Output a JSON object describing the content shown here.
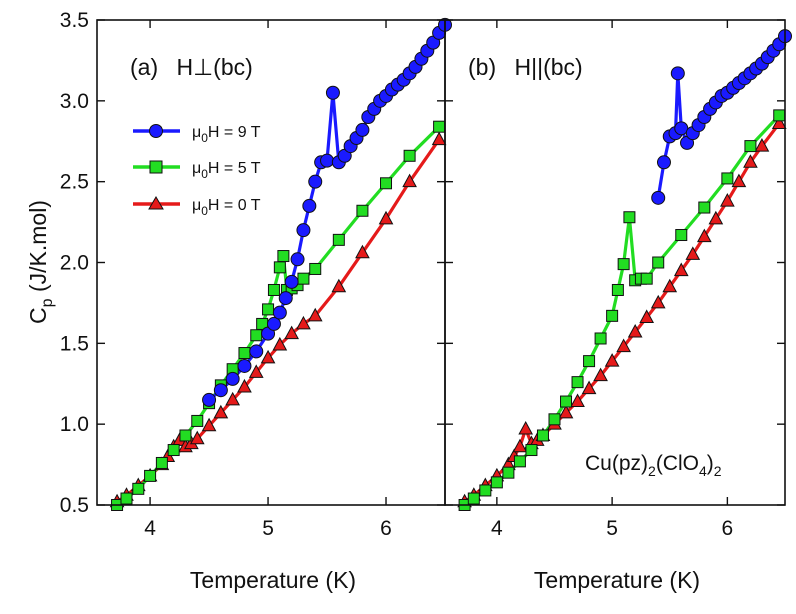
{
  "chart_data": [
    {
      "type": "scatter",
      "panel": "a",
      "panel_label": "(a)",
      "field_label": "H⊥(bc)",
      "xlabel": "Temperature (K)",
      "ylabel": "Cp (J/K.mol)",
      "ylabel_main": "C",
      "ylabel_sub": "p",
      "ylabel_rest": " (J/K.mol)",
      "xlim": [
        3.55,
        6.5
      ],
      "ylim": [
        0.5,
        3.5
      ],
      "xticks": [
        "4",
        "5",
        "6"
      ],
      "yticks": [
        "0.5",
        "1.0",
        "1.5",
        "2.0",
        "2.5",
        "3.0",
        "3.5"
      ],
      "legend_position": "upper-left",
      "series": [
        {
          "name": "μ0H = 9 T",
          "legend_prefix": "μ",
          "legend_sub": "0",
          "legend_suffix": "H = 9 T",
          "color": "#1a1aff",
          "marker": "circle",
          "x": [
            4.5,
            4.6,
            4.7,
            4.8,
            4.9,
            5.0,
            5.05,
            5.1,
            5.15,
            5.2,
            5.25,
            5.3,
            5.35,
            5.4,
            5.45,
            5.5,
            5.55,
            5.6,
            5.65,
            5.7,
            5.75,
            5.8,
            5.85,
            5.9,
            5.95,
            6.0,
            6.05,
            6.1,
            6.15,
            6.2,
            6.25,
            6.3,
            6.35,
            6.4,
            6.45,
            6.5
          ],
          "y": [
            1.15,
            1.21,
            1.28,
            1.36,
            1.45,
            1.56,
            1.62,
            1.69,
            1.78,
            1.88,
            2.02,
            2.2,
            2.35,
            2.5,
            2.62,
            2.63,
            3.05,
            2.62,
            2.66,
            2.72,
            2.77,
            2.82,
            2.9,
            2.95,
            3.0,
            3.03,
            3.07,
            3.1,
            3.13,
            3.17,
            3.21,
            3.26,
            3.31,
            3.36,
            3.42,
            3.47
          ]
        },
        {
          "name": "μ0H = 5 T",
          "legend_prefix": "μ",
          "legend_sub": "0",
          "legend_suffix": "H = 5 T",
          "color": "#22dd22",
          "marker": "square",
          "x": [
            3.72,
            3.8,
            3.9,
            4.0,
            4.1,
            4.2,
            4.3,
            4.4,
            4.5,
            4.6,
            4.7,
            4.8,
            4.9,
            4.95,
            5.0,
            5.05,
            5.1,
            5.13,
            5.16,
            5.2,
            5.25,
            5.3,
            5.4,
            5.6,
            5.8,
            6.0,
            6.2,
            6.45
          ],
          "y": [
            0.5,
            0.54,
            0.6,
            0.68,
            0.76,
            0.84,
            0.93,
            1.02,
            1.13,
            1.24,
            1.34,
            1.44,
            1.55,
            1.62,
            1.71,
            1.83,
            1.97,
            2.04,
            1.83,
            1.84,
            1.86,
            1.9,
            1.96,
            2.14,
            2.32,
            2.49,
            2.66,
            2.84
          ]
        },
        {
          "name": "μ0H = 0 T",
          "legend_prefix": "μ",
          "legend_sub": "0",
          "legend_suffix": "H = 0 T",
          "color": "#e51a1a",
          "marker": "triangle",
          "x": [
            3.72,
            3.8,
            3.9,
            4.0,
            4.1,
            4.15,
            4.2,
            4.25,
            4.3,
            4.35,
            4.4,
            4.5,
            4.6,
            4.7,
            4.8,
            4.9,
            5.0,
            5.1,
            5.2,
            5.3,
            5.4,
            5.6,
            5.8,
            6.0,
            6.2,
            6.45
          ],
          "y": [
            0.52,
            0.56,
            0.62,
            0.68,
            0.75,
            0.8,
            0.86,
            0.9,
            0.86,
            0.88,
            0.91,
            0.99,
            1.07,
            1.15,
            1.23,
            1.32,
            1.41,
            1.49,
            1.56,
            1.62,
            1.67,
            1.85,
            2.06,
            2.27,
            2.5,
            2.76
          ]
        }
      ]
    },
    {
      "type": "scatter",
      "panel": "b",
      "panel_label": "(b)",
      "field_label": "H||(bc)",
      "xlabel": "Temperature (K)",
      "xlim": [
        3.55,
        6.5
      ],
      "ylim": [
        0.5,
        3.5
      ],
      "xticks": [
        "4",
        "5",
        "6"
      ],
      "annotation": {
        "base": "Cu(pz)",
        "sub1": "2",
        "mid": "(ClO",
        "sub2": "4",
        "end": ")",
        "sub3": "2"
      },
      "series": [
        {
          "name": "μ0H = 9 T",
          "color": "#1a1aff",
          "marker": "circle",
          "x": [
            5.4,
            5.45,
            5.5,
            5.55,
            5.57,
            5.6,
            5.65,
            5.7,
            5.75,
            5.8,
            5.85,
            5.9,
            5.95,
            6.0,
            6.05,
            6.1,
            6.15,
            6.2,
            6.25,
            6.3,
            6.35,
            6.4,
            6.45,
            6.5
          ],
          "y": [
            2.4,
            2.62,
            2.78,
            2.8,
            3.17,
            2.83,
            2.74,
            2.8,
            2.85,
            2.9,
            2.95,
            2.99,
            3.03,
            3.05,
            3.08,
            3.11,
            3.14,
            3.17,
            3.2,
            3.23,
            3.27,
            3.31,
            3.35,
            3.4
          ]
        },
        {
          "name": "μ0H = 5 T",
          "color": "#22dd22",
          "marker": "square",
          "x": [
            3.72,
            3.8,
            3.9,
            4.0,
            4.1,
            4.2,
            4.3,
            4.4,
            4.5,
            4.6,
            4.7,
            4.8,
            4.9,
            5.0,
            5.05,
            5.1,
            5.15,
            5.2,
            5.25,
            5.3,
            5.4,
            5.6,
            5.8,
            6.0,
            6.2,
            6.45
          ],
          "y": [
            0.5,
            0.54,
            0.59,
            0.64,
            0.7,
            0.77,
            0.84,
            0.93,
            1.03,
            1.14,
            1.26,
            1.39,
            1.53,
            1.67,
            1.83,
            1.99,
            2.28,
            1.89,
            1.9,
            1.9,
            2.0,
            2.17,
            2.34,
            2.52,
            2.72,
            2.91
          ]
        },
        {
          "name": "μ0H = 0 T",
          "color": "#e51a1a",
          "marker": "triangle",
          "x": [
            3.72,
            3.8,
            3.9,
            4.0,
            4.1,
            4.15,
            4.2,
            4.25,
            4.3,
            4.35,
            4.4,
            4.5,
            4.6,
            4.7,
            4.8,
            4.9,
            5.0,
            5.1,
            5.2,
            5.3,
            5.4,
            5.5,
            5.6,
            5.7,
            5.8,
            5.9,
            6.0,
            6.1,
            6.2,
            6.3,
            6.45
          ],
          "y": [
            0.52,
            0.56,
            0.62,
            0.68,
            0.75,
            0.8,
            0.86,
            0.97,
            0.88,
            0.9,
            0.93,
            1.0,
            1.07,
            1.14,
            1.22,
            1.3,
            1.39,
            1.48,
            1.57,
            1.66,
            1.75,
            1.85,
            1.95,
            2.05,
            2.16,
            2.27,
            2.38,
            2.5,
            2.62,
            2.72,
            2.86
          ]
        }
      ]
    }
  ]
}
